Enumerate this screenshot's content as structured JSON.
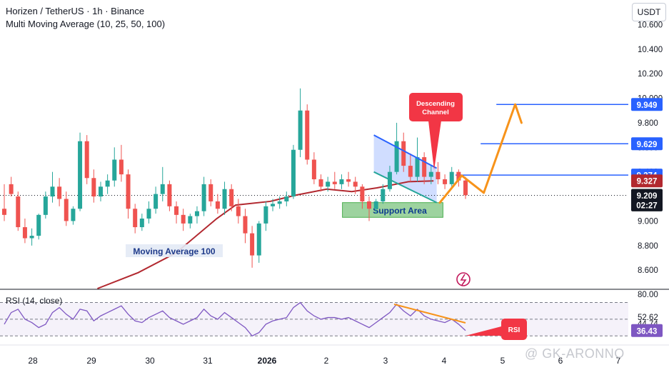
{
  "header": {
    "title": "Horizen / TetherUS · 1h · Binance",
    "indicator": "Multi Moving Average (10, 25, 50, 100)"
  },
  "currency_button": "USDT",
  "colors": {
    "bull": "#26a69a",
    "bear": "#ef5350",
    "ma": "#b2282f",
    "level_line": "#2962ff",
    "projection": "#f7931a",
    "rsi_line": "#7e57c2",
    "support_fill": "#4caf50",
    "channel_fill": "#2962ff",
    "callout": "#f23645",
    "rsi_arrow": "#f23645",
    "flash_icon": "#c2185b"
  },
  "annotations": {
    "ma_label": "Moving Average 100",
    "support_label": "Support Area",
    "channel_callout": [
      "Descending",
      "Channel"
    ],
    "rsi_callout": "RSI"
  },
  "rsi_header": "RSI (14, close)",
  "watermark": "@ GK-ARONNO",
  "chart_data": {
    "type": "candlestick",
    "title": "Horizen / TetherUS · 1h · Binance",
    "ylim": [
      8.45,
      10.8
    ],
    "x_ticks": [
      "28",
      "29",
      "30",
      "31",
      "2026",
      "2",
      "3",
      "4",
      "5",
      "6",
      "7"
    ],
    "y_ticks": [
      "10.600",
      "10.400",
      "10.200",
      "10.000",
      "9.800",
      "9.600",
      "9.400",
      "9.200",
      "9.000",
      "8.800",
      "8.600"
    ],
    "price_labels": [
      {
        "text": "9.949",
        "value": 9.949,
        "color": "#2962ff"
      },
      {
        "text": "9.629",
        "value": 9.629,
        "color": "#2962ff"
      },
      {
        "text": "9.374",
        "value": 9.374,
        "color": "#2962ff"
      },
      {
        "text": "9.327",
        "value": 9.327,
        "color": "#b2282f"
      },
      {
        "text": "9.209",
        "value": 9.209,
        "color": "#131722"
      },
      {
        "text": "02:27",
        "value": 9.131,
        "color": "#131722"
      }
    ],
    "key_levels": [
      9.949,
      9.629,
      9.374
    ],
    "current_price": 9.209,
    "candles": [
      [
        9.1,
        9.3,
        9.05,
        9.0
      ],
      [
        9.3,
        9.36,
        9.22,
        9.2
      ],
      [
        9.2,
        9.24,
        8.95,
        8.92
      ],
      [
        8.95,
        9.02,
        8.86,
        8.82
      ],
      [
        8.86,
        8.94,
        8.88,
        8.8
      ],
      [
        8.88,
        9.06,
        9.05,
        8.85
      ],
      [
        9.05,
        9.24,
        9.2,
        9.02
      ],
      [
        9.2,
        9.4,
        9.28,
        9.15
      ],
      [
        9.28,
        9.35,
        9.18,
        9.12
      ],
      [
        9.18,
        9.24,
        9.0,
        8.96
      ],
      [
        9.0,
        9.12,
        9.1,
        8.97
      ],
      [
        9.1,
        9.72,
        9.65,
        9.08
      ],
      [
        9.65,
        9.7,
        9.35,
        9.3
      ],
      [
        9.35,
        9.42,
        9.2,
        9.15
      ],
      [
        9.2,
        9.32,
        9.28,
        9.16
      ],
      [
        9.28,
        9.38,
        9.33,
        9.22
      ],
      [
        9.33,
        9.6,
        9.5,
        9.28
      ],
      [
        9.5,
        9.62,
        9.38,
        9.32
      ],
      [
        9.38,
        9.42,
        9.1,
        9.02
      ],
      [
        9.1,
        9.14,
        8.95,
        8.9
      ],
      [
        8.95,
        9.06,
        9.02,
        8.92
      ],
      [
        9.02,
        9.16,
        9.1,
        8.98
      ],
      [
        9.1,
        9.28,
        9.22,
        9.06
      ],
      [
        9.22,
        9.44,
        9.3,
        9.16
      ],
      [
        9.3,
        9.33,
        9.12,
        9.08
      ],
      [
        9.12,
        9.16,
        9.05,
        8.98
      ],
      [
        9.05,
        9.1,
        8.98,
        8.92
      ],
      [
        8.98,
        9.06,
        9.04,
        8.94
      ],
      [
        9.04,
        9.12,
        9.08,
        8.98
      ],
      [
        9.08,
        9.36,
        9.3,
        9.04
      ],
      [
        9.3,
        9.34,
        9.16,
        9.12
      ],
      [
        9.16,
        9.22,
        9.1,
        9.06
      ],
      [
        9.1,
        9.32,
        9.26,
        9.05
      ],
      [
        9.26,
        9.3,
        9.12,
        9.08
      ],
      [
        9.12,
        9.18,
        9.04,
        8.98
      ],
      [
        9.04,
        9.1,
        8.9,
        8.82
      ],
      [
        8.9,
        8.96,
        8.72,
        8.62
      ],
      [
        8.72,
        9.0,
        8.98,
        8.66
      ],
      [
        8.98,
        9.16,
        9.12,
        8.92
      ],
      [
        9.12,
        9.18,
        9.14,
        9.08
      ],
      [
        9.14,
        9.2,
        9.16,
        9.1
      ],
      [
        9.16,
        9.24,
        9.2,
        9.12
      ],
      [
        9.2,
        9.62,
        9.58,
        9.18
      ],
      [
        9.58,
        10.08,
        9.9,
        9.52
      ],
      [
        9.9,
        9.95,
        9.5,
        9.46
      ],
      [
        9.5,
        9.56,
        9.34,
        9.3
      ],
      [
        9.34,
        9.38,
        9.28,
        9.24
      ],
      [
        9.28,
        9.36,
        9.32,
        9.24
      ],
      [
        9.32,
        9.4,
        9.3,
        9.26
      ],
      [
        9.3,
        9.38,
        9.34,
        9.26
      ],
      [
        9.34,
        9.4,
        9.32,
        9.28
      ],
      [
        9.32,
        9.36,
        9.28,
        9.22
      ],
      [
        9.28,
        9.3,
        9.16,
        9.1
      ],
      [
        9.16,
        9.2,
        9.1,
        9.0
      ],
      [
        9.1,
        9.18,
        9.16,
        9.06
      ],
      [
        9.16,
        9.3,
        9.26,
        9.14
      ],
      [
        9.26,
        9.45,
        9.4,
        9.24
      ],
      [
        9.4,
        9.8,
        9.65,
        9.38
      ],
      [
        9.65,
        9.72,
        9.45,
        9.4
      ],
      [
        9.45,
        9.55,
        9.36,
        9.32
      ],
      [
        9.36,
        9.68,
        9.52,
        9.32
      ],
      [
        9.52,
        9.56,
        9.36,
        9.3
      ],
      [
        9.36,
        9.45,
        9.4,
        9.3
      ],
      [
        9.4,
        9.48,
        9.34,
        9.3
      ],
      [
        9.34,
        9.38,
        9.3,
        9.26
      ],
      [
        9.3,
        9.44,
        9.4,
        9.28
      ],
      [
        9.4,
        9.42,
        9.33,
        9.28
      ],
      [
        9.33,
        9.36,
        9.21,
        9.18
      ]
    ],
    "moving_average_100": [
      [
        0.155,
        8.45
      ],
      [
        0.22,
        8.58
      ],
      [
        0.28,
        8.74
      ],
      [
        0.345,
        9.02
      ],
      [
        0.375,
        9.13
      ],
      [
        0.43,
        9.16
      ],
      [
        0.47,
        9.21
      ],
      [
        0.52,
        9.26
      ],
      [
        0.56,
        9.24
      ],
      [
        0.6,
        9.27
      ],
      [
        0.65,
        9.32
      ],
      [
        0.69,
        9.327
      ]
    ],
    "descending_channel": {
      "upper": [
        [
          0.595,
          9.7
        ],
        [
          0.695,
          9.43
        ]
      ],
      "lower": [
        [
          0.595,
          9.4
        ],
        [
          0.695,
          9.15
        ]
      ]
    },
    "support_area": {
      "from": 9.03,
      "to": 9.15,
      "x_from": 0.545,
      "x_to": 0.705
    },
    "projection_path": [
      [
        0.7,
        9.15
      ],
      [
        0.735,
        9.37
      ],
      [
        0.77,
        9.23
      ],
      [
        0.82,
        9.95
      ],
      [
        0.83,
        9.8
      ]
    ],
    "rsi": {
      "title": "RSI (14, close)",
      "ylim": [
        20,
        85
      ],
      "ticks": [
        "80.00",
        "52.62",
        "44.74"
      ],
      "current": 36.43,
      "levels": [
        70,
        50,
        30
      ],
      "values": [
        44,
        58,
        62,
        50,
        46,
        40,
        44,
        58,
        64,
        56,
        50,
        62,
        60,
        48,
        54,
        58,
        62,
        66,
        56,
        48,
        46,
        52,
        56,
        60,
        52,
        48,
        44,
        48,
        52,
        62,
        54,
        50,
        58,
        52,
        46,
        40,
        30,
        34,
        44,
        48,
        50,
        52,
        64,
        70,
        60,
        54,
        50,
        52,
        52,
        50,
        52,
        48,
        44,
        40,
        46,
        52,
        58,
        68,
        60,
        54,
        62,
        54,
        50,
        48,
        46,
        50,
        44,
        36.43
      ]
    }
  }
}
